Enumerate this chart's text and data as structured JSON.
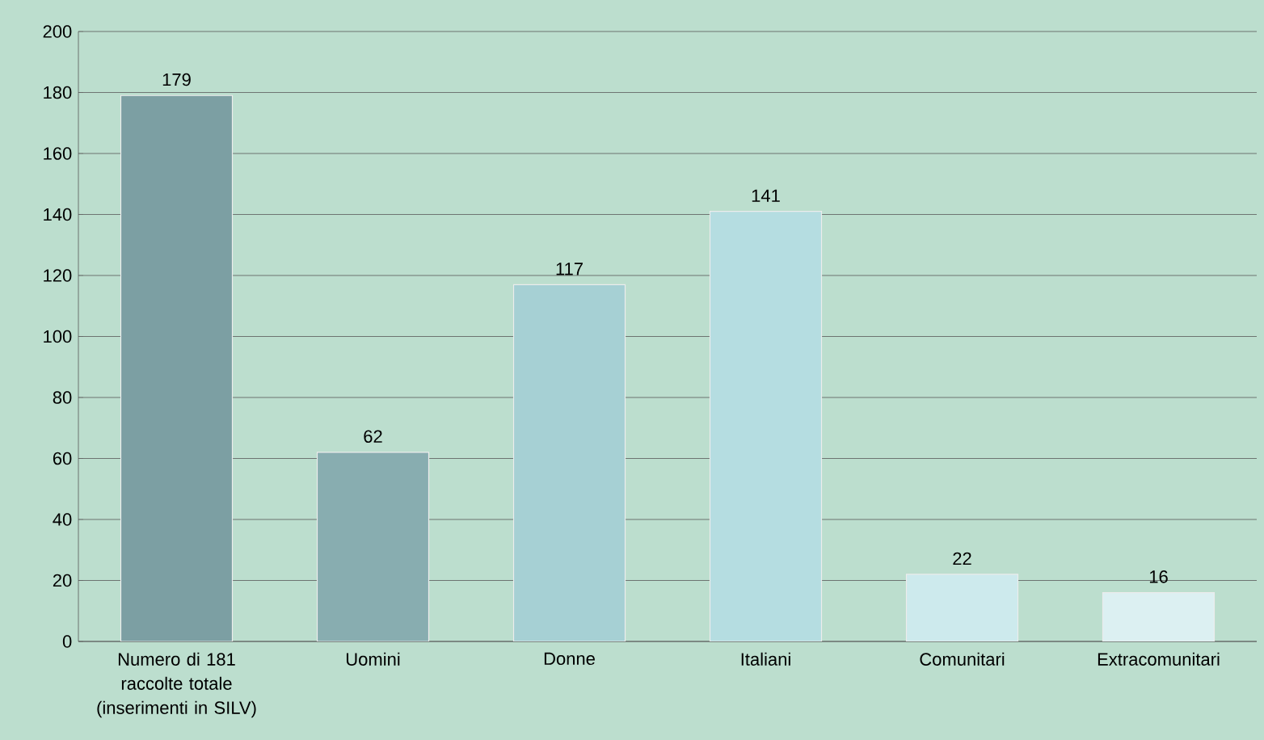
{
  "chart_data": {
    "type": "bar",
    "categories": [
      "Numero di 181 raccolte totale (inserimenti in SILV)",
      "Uomini",
      "Donne",
      "Italiani",
      "Comunitari",
      "Extracomunitari"
    ],
    "values": [
      179,
      62,
      117,
      141,
      22,
      16
    ],
    "colors": [
      "#7c9fa3",
      "#88adb0",
      "#a6d0d4",
      "#b5dde1",
      "#cdeaed",
      "#dcf0f2"
    ],
    "ylim": [
      0,
      200
    ],
    "yticks": [
      0,
      20,
      40,
      60,
      80,
      100,
      120,
      140,
      160,
      180,
      200
    ],
    "grid": "y",
    "data_labels": true
  }
}
